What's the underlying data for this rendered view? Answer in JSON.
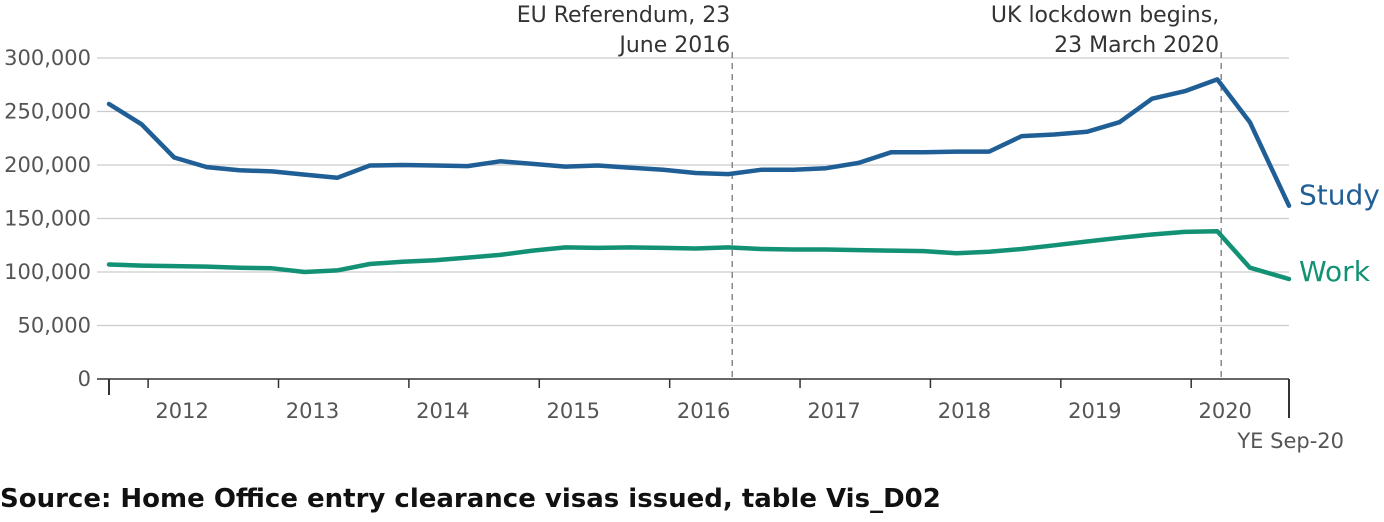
{
  "source": "Source: Home Office entry clearance visas issued, table Vis_D02",
  "chart_data": {
    "type": "line",
    "ylim": [
      0,
      300000
    ],
    "yticks": [
      {
        "value": 0,
        "label": "0"
      },
      {
        "value": 50000,
        "label": "50,000"
      },
      {
        "value": 100000,
        "label": "100,000"
      },
      {
        "value": 150000,
        "label": "150,000"
      },
      {
        "value": 200000,
        "label": "200,000"
      },
      {
        "value": 250000,
        "label": "250,000"
      },
      {
        "value": 300000,
        "label": "300,000"
      }
    ],
    "xlim": [
      2011.7,
      2020.75
    ],
    "xticks": [
      {
        "value": 2011.7,
        "label": ""
      },
      {
        "value": 2012.0,
        "label": "2012"
      },
      {
        "value": 2013.0,
        "label": "2013"
      },
      {
        "value": 2014.0,
        "label": "2014"
      },
      {
        "value": 2015.0,
        "label": "2015"
      },
      {
        "value": 2016.0,
        "label": "2016"
      },
      {
        "value": 2017.0,
        "label": "2017"
      },
      {
        "value": 2018.0,
        "label": "2018"
      },
      {
        "value": 2019.0,
        "label": "2019"
      },
      {
        "value": 2020.0,
        "label": "2020"
      },
      {
        "value": 2020.75,
        "label": "YE Sep-20"
      }
    ],
    "x": [
      2011.7,
      2011.95,
      2012.2,
      2012.45,
      2012.7,
      2012.95,
      2013.2,
      2013.45,
      2013.7,
      2013.95,
      2014.2,
      2014.45,
      2014.7,
      2014.95,
      2015.2,
      2015.45,
      2015.7,
      2015.95,
      2016.2,
      2016.45,
      2016.7,
      2016.95,
      2017.2,
      2017.45,
      2017.7,
      2017.95,
      2018.2,
      2018.45,
      2018.7,
      2018.95,
      2019.2,
      2019.45,
      2019.7,
      2019.95,
      2020.2,
      2020.45,
      2020.75
    ],
    "series": [
      {
        "name": "Study",
        "color": "#205f96",
        "values": [
          257000,
          238000,
          207000,
          198000,
          195000,
          194000,
          191000,
          188000,
          199500,
          200000,
          199500,
          199000,
          203500,
          201000,
          198500,
          199500,
          197500,
          195500,
          192500,
          191500,
          195500,
          195500,
          197000,
          202000,
          212000,
          212000,
          212500,
          212500,
          227000,
          228500,
          231000,
          240000,
          262000,
          269000,
          280000,
          240000,
          162000
        ]
      },
      {
        "name": "Work",
        "color": "#139174",
        "values": [
          107000,
          106000,
          105500,
          105000,
          104000,
          103500,
          100000,
          101500,
          107500,
          109500,
          111000,
          113500,
          116000,
          120000,
          123000,
          122500,
          123000,
          122500,
          122000,
          123000,
          121500,
          121000,
          121000,
          120500,
          120000,
          119500,
          117500,
          119000,
          121500,
          125000,
          128500,
          132000,
          135000,
          137500,
          138000,
          104000,
          93500
        ]
      }
    ],
    "annotations": [
      {
        "x": 2016.48,
        "lines": [
          "EU Referendum, 23",
          "June 2016"
        ]
      },
      {
        "x": 2020.23,
        "lines": [
          "UK lockdown begins,",
          "23 March 2020"
        ]
      }
    ],
    "grid": true,
    "legend": "inline-right"
  }
}
